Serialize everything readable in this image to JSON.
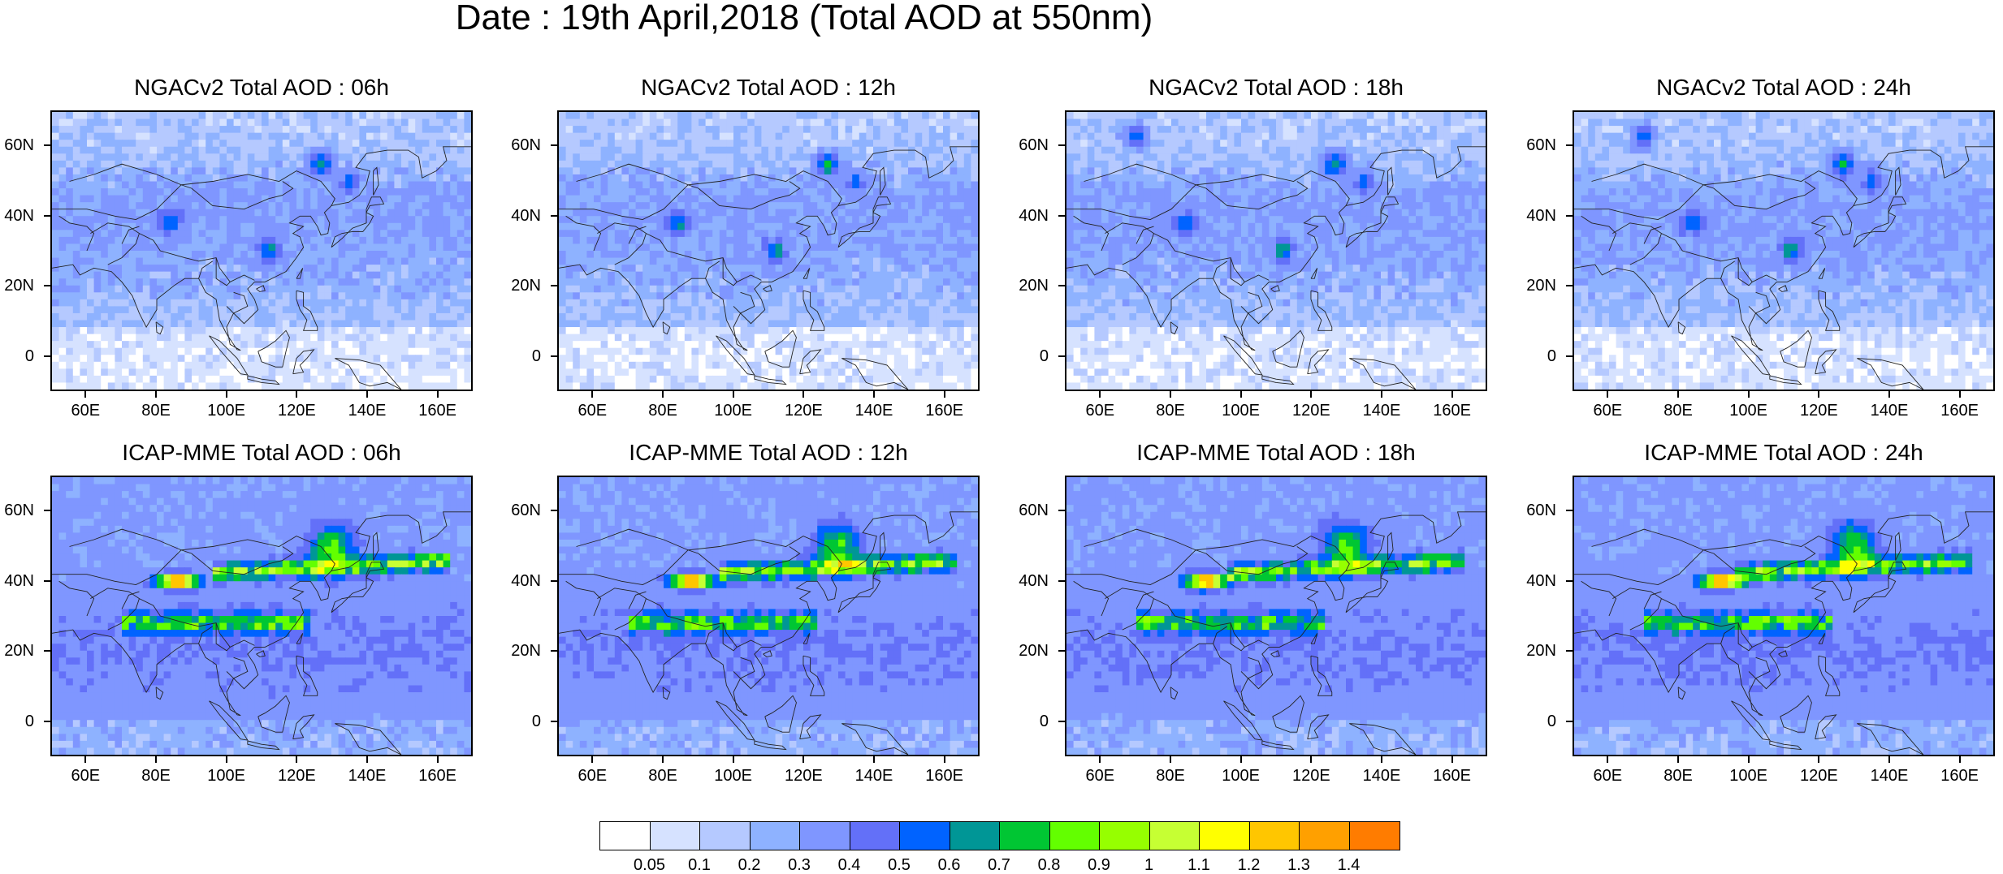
{
  "title": "Date : 19th April,2018 (Total AOD at 550nm)",
  "panels": [
    {
      "title": "NGACv2 Total AOD : 06h",
      "model": "ngac",
      "hour": 6
    },
    {
      "title": "NGACv2 Total AOD : 12h",
      "model": "ngac",
      "hour": 12
    },
    {
      "title": "NGACv2 Total AOD : 18h",
      "model": "ngac",
      "hour": 18
    },
    {
      "title": "NGACv2 Total AOD : 24h",
      "model": "ngac",
      "hour": 24
    },
    {
      "title": "ICAP-MME Total AOD : 06h",
      "model": "icap",
      "hour": 6
    },
    {
      "title": "ICAP-MME Total AOD : 12h",
      "model": "icap",
      "hour": 12
    },
    {
      "title": "ICAP-MME Total AOD : 18h",
      "model": "icap",
      "hour": 18
    },
    {
      "title": "ICAP-MME Total AOD : 24h",
      "model": "icap",
      "hour": 24
    }
  ],
  "map": {
    "lon_range": [
      50,
      170
    ],
    "lat_range": [
      -10,
      70
    ],
    "lon_ticks": [
      "60E",
      "80E",
      "100E",
      "120E",
      "140E",
      "160E"
    ],
    "lat_ticks": [
      "60N",
      "40N",
      "20N",
      "0"
    ]
  },
  "colorbar": {
    "labels": [
      "0.05",
      "0.1",
      "0.2",
      "0.3",
      "0.4",
      "0.5",
      "0.6",
      "0.7",
      "0.8",
      "0.9",
      "1",
      "1.1",
      "1.2",
      "1.3",
      "1.4"
    ],
    "colors": [
      "#ffffff",
      "#d6e2ff",
      "#b5c9ff",
      "#8eb2ff",
      "#7f96ff",
      "#6370f8",
      "#0063ff",
      "#009696",
      "#00c633",
      "#63ff00",
      "#96ff00",
      "#c6ff33",
      "#ffff00",
      "#ffc600",
      "#ffa000",
      "#ff7c00",
      "#ff1900"
    ]
  }
}
